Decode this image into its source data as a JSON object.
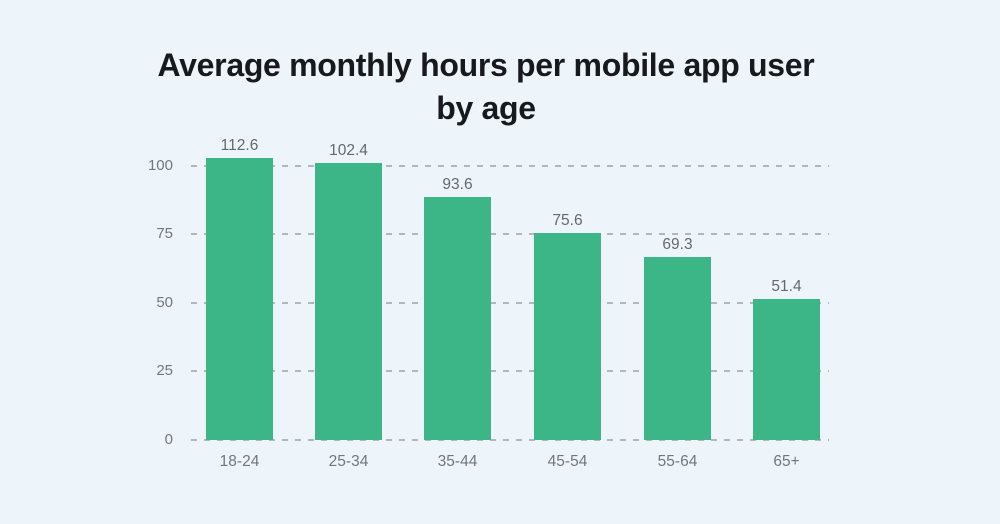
{
  "page": {
    "background_color": "#edf4fa"
  },
  "chart_data": {
    "type": "bar",
    "title": "Average monthly hours per mobile app user by age",
    "xlabel": "",
    "ylabel": "",
    "categories": [
      "18-24",
      "25-34",
      "35-44",
      "45-54",
      "55-64",
      "65+"
    ],
    "values": [
      112.6,
      102.4,
      93.6,
      75.6,
      69.3,
      51.4
    ],
    "value_labels": [
      "112.6",
      "102.4",
      "93.6",
      "75.6",
      "69.3",
      "51.4"
    ],
    "values_as_drawn": [
      102.9,
      100.9,
      88.7,
      75.4,
      66.7,
      51.4
    ],
    "y_ticks": [
      0,
      25,
      50,
      75,
      100
    ],
    "ylim": [
      0,
      105
    ],
    "grid": "horizontal-dashed",
    "legend": "none",
    "bar_color": "#3cb687",
    "gridline_color": "#b0b7bd",
    "title_color": "#17191d",
    "tick_label_color": "#71777e",
    "value_label_color": "#63696f"
  }
}
